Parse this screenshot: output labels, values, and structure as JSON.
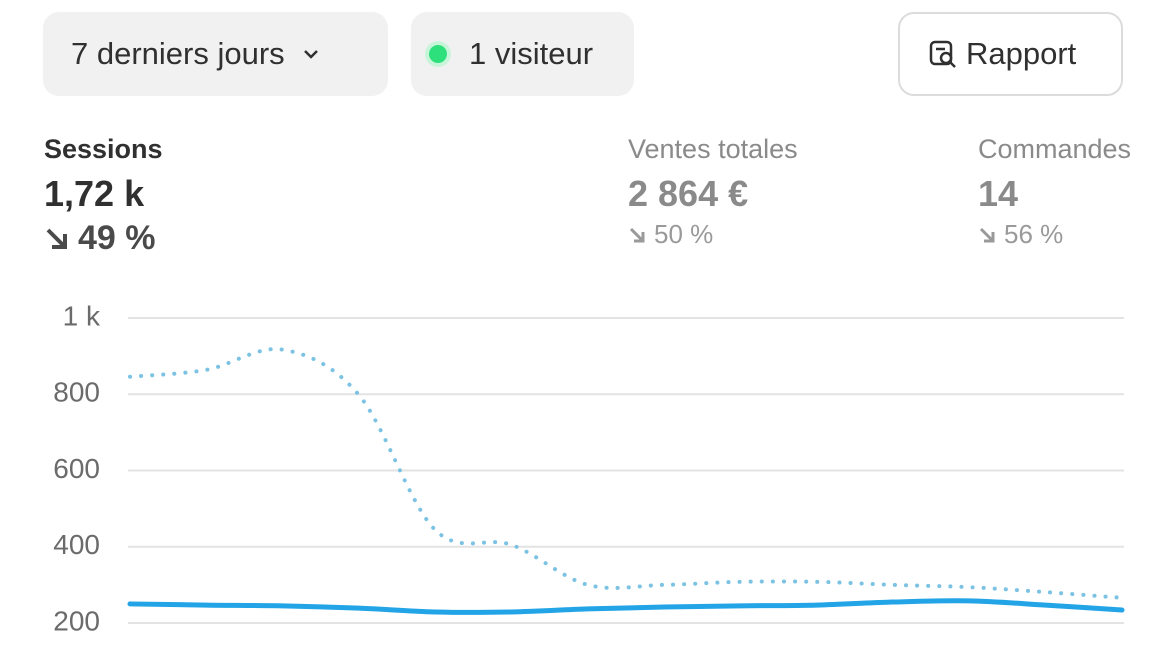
{
  "toolbar": {
    "period": "7 derniers jours",
    "visitors": "1 visiteur",
    "report": "Rapport"
  },
  "metrics": [
    {
      "label": "Sessions",
      "value": "1,72 k",
      "change": "49 %"
    },
    {
      "label": "Ventes totales",
      "value": "2 864 €",
      "change": "50 %"
    },
    {
      "label": "Commandes",
      "value": "14",
      "change": "56 %"
    }
  ],
  "chart_data": {
    "type": "line",
    "categories": [
      null,
      null,
      null,
      null,
      null,
      null,
      null,
      null,
      null,
      null,
      null,
      null,
      null,
      null
    ],
    "series": [
      {
        "color": "#7cc3e3",
        "dash": true,
        "values": [
          846,
          864,
          917,
          798,
          444,
          405,
          300,
          300,
          308,
          308,
          300,
          294,
          281,
          266
        ]
      },
      {
        "color": "#22a4e6",
        "dash": false,
        "values": [
          250,
          247,
          245,
          239,
          229,
          229,
          237,
          242,
          245,
          247,
          255,
          258,
          247,
          234
        ]
      }
    ],
    "ylim": [
      200,
      1000
    ],
    "yticks": [
      200,
      400,
      600,
      800,
      {
        "value": 1000,
        "label": "1 k"
      }
    ],
    "grid": true
  }
}
